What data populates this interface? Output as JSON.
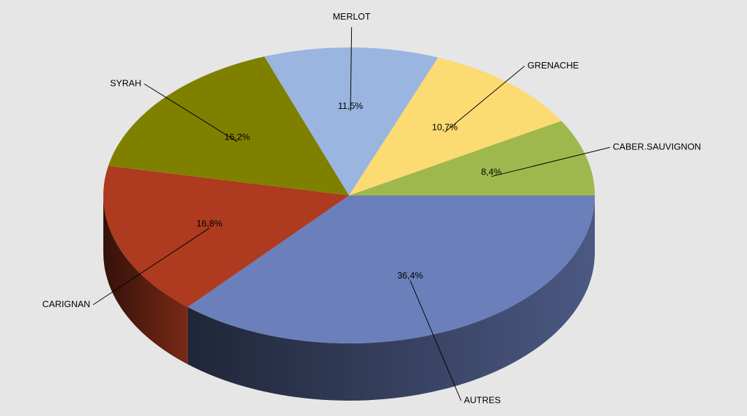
{
  "chart_data": {
    "type": "pie",
    "categories": [
      "AUTRES",
      "CARIGNAN",
      "SYRAH",
      "MERLOT",
      "GRENACHE",
      "CABER.SAUVIGNON"
    ],
    "values": [
      36.4,
      16.8,
      16.2,
      11.5,
      10.7,
      8.4
    ],
    "value_labels": [
      "36,4%",
      "16,8%",
      "16,2%",
      "11,5%",
      "10,7%",
      "8,4%"
    ],
    "colors": [
      "#6b7fbb",
      "#ae3a20",
      "#808000",
      "#9ab5e0",
      "#fcdb72",
      "#9fb84d"
    ]
  }
}
